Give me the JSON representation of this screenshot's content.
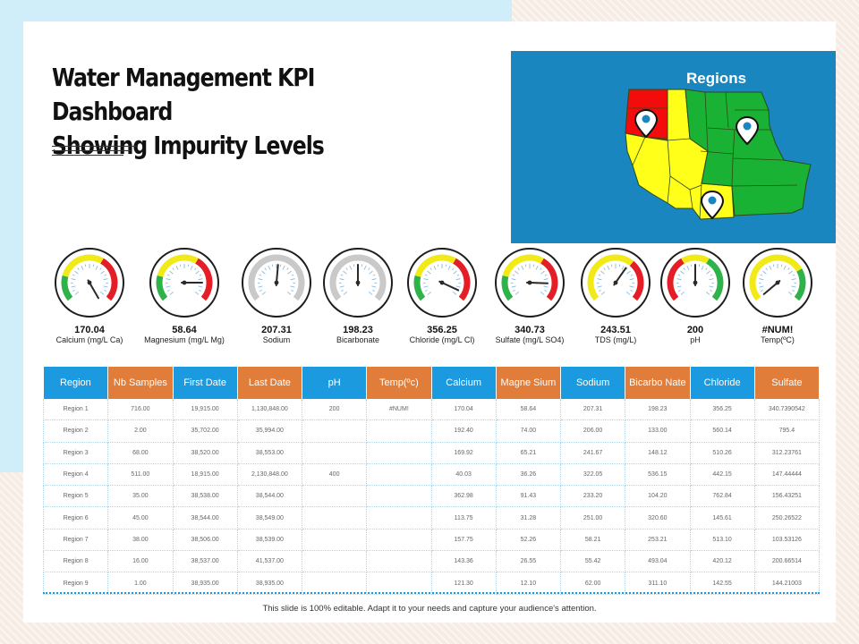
{
  "title_line1": "Water Management KPI Dashboard",
  "title_line2": "Showing Impurity Levels",
  "map": {
    "title": "Regions",
    "colors": {
      "panel": "#1a86c0",
      "red": "#f40c0c",
      "yellow": "#ffff1a",
      "green": "#19b234",
      "border": "#2c4a14"
    },
    "pins": [
      "location-pin-northwest",
      "location-pin-north",
      "location-pin-southwest"
    ]
  },
  "gauges": [
    {
      "value": "170.04",
      "label": "Calcium (mg/L Ca)",
      "angle": 150,
      "type": "gyr"
    },
    {
      "value": "58.64",
      "label": "Magnesium (mg/L Mg)",
      "angle": 90,
      "type": "gyr"
    },
    {
      "value": "207.31",
      "label": "Sodium",
      "angle": 5,
      "type": "gray"
    },
    {
      "value": "198.23",
      "label": "Bicarbonate",
      "angle": 0,
      "type": "gray"
    },
    {
      "value": "356.25",
      "label": "Chloride (mg/L Cl)",
      "angle": 115,
      "type": "gyr"
    },
    {
      "value": "340.73",
      "label": "Sulfate (mg/L SO4)",
      "angle": 92,
      "type": "gyr"
    },
    {
      "value": "243.51",
      "label": "TDS (mg/L)",
      "angle": 35,
      "type": "yr"
    },
    {
      "value": "200",
      "label": "pH",
      "angle": 0,
      "type": "ryg"
    },
    {
      "value": "#NUM!",
      "label": "Temp(ºC)",
      "angle": -130,
      "type": "yg"
    }
  ],
  "gauge_colors": {
    "green": "#2db34a",
    "yellow": "#f2ea18",
    "red": "#e41e26",
    "gray": "#c9c9c9",
    "tick": "#7fb0d6"
  },
  "table": {
    "headers": [
      {
        "text": "Region",
        "color": "b"
      },
      {
        "text": "Nb Samples",
        "color": "o"
      },
      {
        "text": "First Date",
        "color": "b"
      },
      {
        "text": "Last Date",
        "color": "o"
      },
      {
        "text": "pH",
        "color": "b"
      },
      {
        "text": "Temp(ºc)",
        "color": "o"
      },
      {
        "text": "Calcium",
        "color": "b"
      },
      {
        "text": "Magne Sium",
        "color": "o"
      },
      {
        "text": "Sodium",
        "color": "b"
      },
      {
        "text": "Bicarbo Nate",
        "color": "o"
      },
      {
        "text": "Chloride",
        "color": "b"
      },
      {
        "text": "Sulfate",
        "color": "o"
      }
    ],
    "rows": [
      [
        "Region 1",
        "716.00",
        "19,915.00",
        "1,130,848.00",
        "200",
        "#NUM!",
        "170.04",
        "58.64",
        "207.31",
        "198.23",
        "356.25",
        "340.7390542"
      ],
      [
        "Region 2",
        "2.00",
        "35,702.00",
        "35,994.00",
        "",
        "",
        "192.40",
        "74.00",
        "206.00",
        "133.00",
        "560.14",
        "795.4"
      ],
      [
        "Region 3",
        "68.00",
        "38,520.00",
        "38,553.00",
        "",
        "",
        "169.92",
        "65.21",
        "241.67",
        "148.12",
        "510.26",
        "312.23761"
      ],
      [
        "Region 4",
        "511.00",
        "18,915.00",
        "2,130,848.00",
        "400",
        "",
        "40.03",
        "36.26",
        "322.05",
        "536.15",
        "442.15",
        "147.44444"
      ],
      [
        "Region 5",
        "35.00",
        "38,538.00",
        "38,544.00",
        "",
        "",
        "362.98",
        "91.43",
        "233.20",
        "104.20",
        "762.84",
        "156.43251"
      ],
      [
        "Region 6",
        "45.00",
        "38,544.00",
        "38,549.00",
        "",
        "",
        "113.75",
        "31.28",
        "251.00",
        "320.60",
        "145.61",
        "250.26522"
      ],
      [
        "Region 7",
        "38.00",
        "38,506.00",
        "38,539.00",
        "",
        "",
        "157.75",
        "52.26",
        "58.21",
        "253.21",
        "513.10",
        "103.53126"
      ],
      [
        "Region 8",
        "16.00",
        "38,537.00",
        "41,537.00",
        "",
        "",
        "143.36",
        "26.55",
        "55.42",
        "493.04",
        "420.12",
        "200.66514"
      ],
      [
        "Region 9",
        "1.00",
        "38,935.00",
        "38,935.00",
        "",
        "",
        "121.30",
        "12.10",
        "62.00",
        "311.10",
        "142.55",
        "144.21003"
      ]
    ]
  },
  "footer": "This slide is 100% editable.  Adapt it to your needs and capture your audience's attention."
}
